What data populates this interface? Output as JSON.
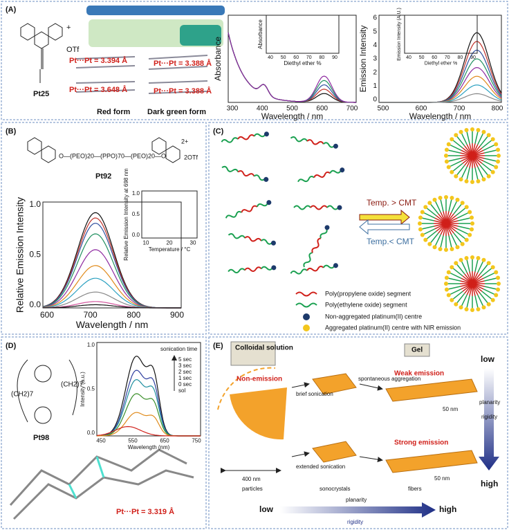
{
  "panel_a": {
    "label": "(A)",
    "compound": "Pt25",
    "counterion": "OTf",
    "charge": "+",
    "distances": [
      "Pt···Pt = 3.394 Å",
      "Pt···Pt = 3.648 Å",
      "Pt···Pt = 3.388 Å",
      "Pt···Pt = 3.388 Å"
    ],
    "forms": [
      "Red form",
      "Dark green form"
    ],
    "absorbance_chart": {
      "y_label": "Absorbance",
      "x_label": "Wavelength / nm",
      "x_ticks": [
        "300",
        "400",
        "500",
        "600",
        "700"
      ],
      "inset": {
        "y_label": "Absorbance",
        "x_label": "Diethyl ether %",
        "x_ticks": [
          "40",
          "50",
          "60",
          "70",
          "80",
          "90"
        ]
      }
    },
    "emission_chart": {
      "y_label": "Emission Intensity",
      "x_label": "Wavelength / nm",
      "y_ticks": [
        "0",
        "1",
        "2",
        "3",
        "4",
        "5",
        "6"
      ],
      "x_ticks": [
        "500",
        "600",
        "700",
        "800"
      ],
      "inset": {
        "y_label": "Emission Intensity (A.U.)",
        "x_label": "Diethyl ether %",
        "x_ticks": [
          "40",
          "50",
          "60",
          "70",
          "80",
          "90"
        ]
      }
    }
  },
  "panel_b": {
    "label": "(B)",
    "compound": "Pt92",
    "linker": "O—(PEO)20—(PPO)70—(PEO)20—O",
    "charge": "2+",
    "counterion": "2OTf",
    "chart": {
      "y_label": "Relative Emission Intensity",
      "x_label": "Wavelength / nm",
      "y_ticks": [
        "0.0",
        "0.5",
        "1.0"
      ],
      "x_ticks": [
        "600",
        "700",
        "800",
        "900"
      ],
      "inset": {
        "y_label": "Relative Emission Intensity at 698 nm",
        "x_label": "Temperature / °C",
        "y_ticks": [
          "0.0",
          "0.5",
          "1.0"
        ],
        "x_ticks": [
          "10",
          "20",
          "30"
        ]
      }
    }
  },
  "panel_c": {
    "label": "(C)",
    "forward": "Temp. > CMT",
    "reverse": "Temp.< CMT",
    "legend": [
      "Poly(propylene oxide) segment",
      "Poly(ethylene oxide) segment",
      "Non-aggregated platinum(II) centre",
      "Aggregated platinum(II) centre with NIR emission"
    ]
  },
  "panel_d": {
    "label": "(D)",
    "compound": "Pt98",
    "spacers": [
      "(CH2)7",
      "(CH2)7"
    ],
    "distance": "Pt···Pt = 3.319 Å",
    "chart": {
      "y_label": "Intensity (a.u.)",
      "x_label": "Wavelength (nm)",
      "y_ticks": [
        "0.0",
        "0.5",
        "1.0"
      ],
      "x_ticks": [
        "450",
        "550",
        "650",
        "750"
      ],
      "legend_title": "sonication time",
      "legend": [
        "5 sec",
        "3 sec",
        "2 sec",
        "1 sec",
        "0 sec",
        "sol"
      ]
    }
  },
  "panel_e": {
    "label": "(E)",
    "colloid": "Colloidal solution",
    "gel": "Gel",
    "non_emission": "Non-emission",
    "brief": "brief sonication",
    "spontaneous": "spontaneous aggregation",
    "weak": "Weak emission",
    "scale_top": "50 nm",
    "extended": "extended sonication",
    "strong": "Strong emission",
    "scale_left": "400 nm",
    "scale_bottom": "50 nm",
    "stages": [
      "particles",
      "sonocrystals",
      "fibers"
    ],
    "side_scale": {
      "low": "low",
      "high": "high",
      "planarity": "planarity",
      "rigidity": "rigidity"
    },
    "bottom_scale": {
      "low": "low",
      "high": "high",
      "planarity": "planarity",
      "rigidity": "rigidity"
    }
  }
}
